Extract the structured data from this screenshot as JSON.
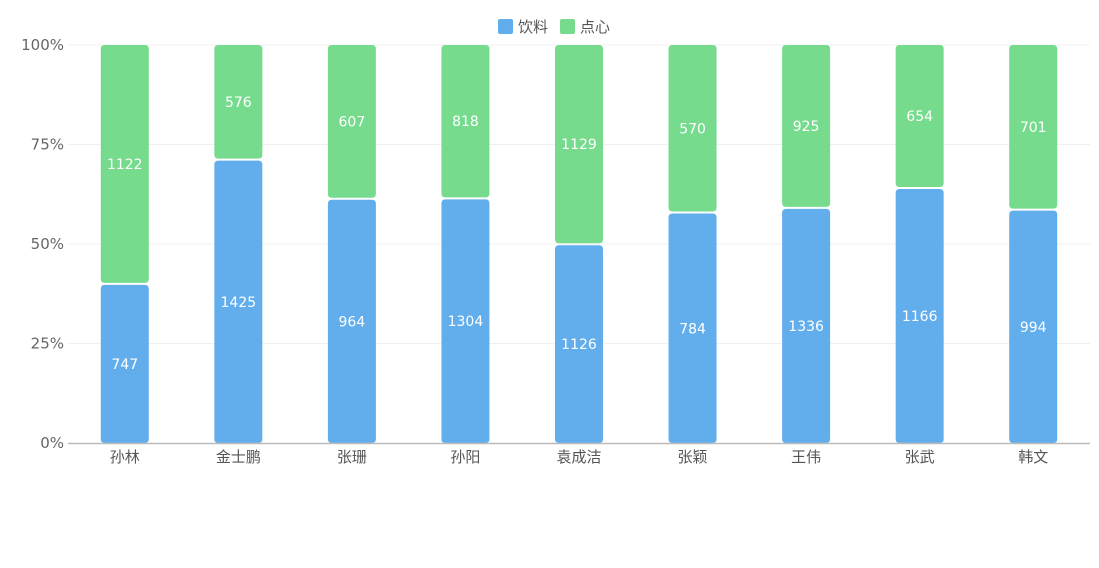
{
  "chart_data": {
    "type": "bar",
    "stacked": true,
    "normalized": true,
    "categories": [
      "孙林",
      "金士鹏",
      "张珊",
      "孙阳",
      "袁成洁",
      "张颖",
      "王伟",
      "张武",
      "韩文"
    ],
    "series": [
      {
        "name": "饮料",
        "color": "#62aeed",
        "values": [
          747,
          1425,
          964,
          1304,
          1126,
          784,
          1336,
          1166,
          994
        ]
      },
      {
        "name": "点心",
        "color": "#77db8e",
        "values": [
          1122,
          576,
          607,
          818,
          1129,
          570,
          925,
          654,
          701
        ]
      }
    ],
    "yticks": [
      "0%",
      "25%",
      "50%",
      "75%",
      "100%"
    ],
    "ylim": [
      0,
      100
    ],
    "grid": true,
    "legend_position": "top-center"
  }
}
